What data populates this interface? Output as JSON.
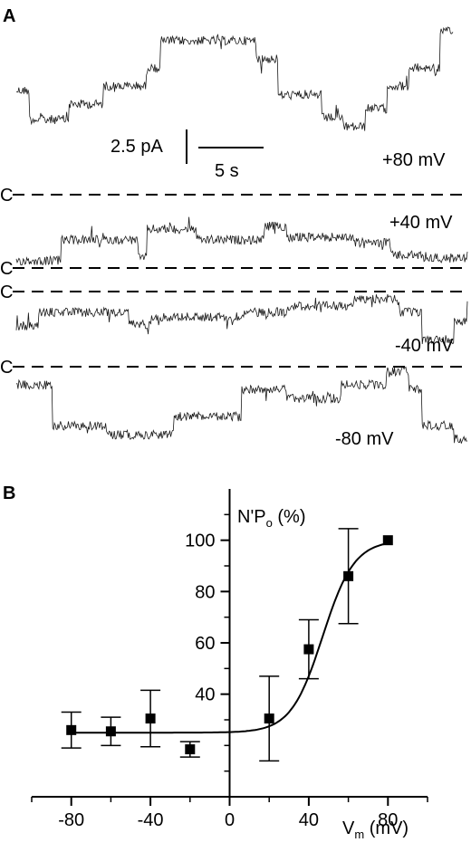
{
  "panel_a": {
    "label": "A",
    "closed_marker": "C",
    "scale_bar_current": "2.5 pA",
    "scale_bar_time": "5 s",
    "traces": [
      {
        "voltage_label": "+80 mV"
      },
      {
        "voltage_label": "+40 mV"
      },
      {
        "voltage_label": "-40 mV"
      },
      {
        "voltage_label": "-80 mV"
      }
    ]
  },
  "panel_b": {
    "label": "B",
    "ylabel_main": "N'P",
    "ylabel_sub": "o",
    "ylabel_unit": " (%)",
    "xlabel_main": "V",
    "xlabel_sub": "m",
    "xlabel_unit": " (mV)"
  },
  "chart_data": {
    "type": "scatter",
    "title": "",
    "x": [
      -80,
      -60,
      -40,
      -20,
      20,
      40,
      60,
      80
    ],
    "y": [
      26,
      25.5,
      30.5,
      18.5,
      30.5,
      57.5,
      86,
      100
    ],
    "yerr": [
      7,
      5.5,
      11,
      3,
      16.5,
      11.5,
      18.5,
      0
    ],
    "marker": "square",
    "fit": {
      "type": "boltzmann",
      "bottom": 25,
      "top": 100,
      "v_half": 47,
      "slope": 8
    },
    "xlim": [
      -100,
      100
    ],
    "ylim": [
      0,
      120
    ],
    "xticks": [
      -80,
      -40,
      0,
      40,
      80
    ],
    "yticks": [
      40,
      60,
      80,
      100
    ],
    "x_minor_ticks": [
      -100,
      -60,
      -20,
      20,
      60,
      100
    ],
    "y_minor_ticks": [
      10,
      20,
      30,
      50,
      70,
      90,
      110
    ],
    "grid": false,
    "legend": "none",
    "color": "#000000"
  }
}
